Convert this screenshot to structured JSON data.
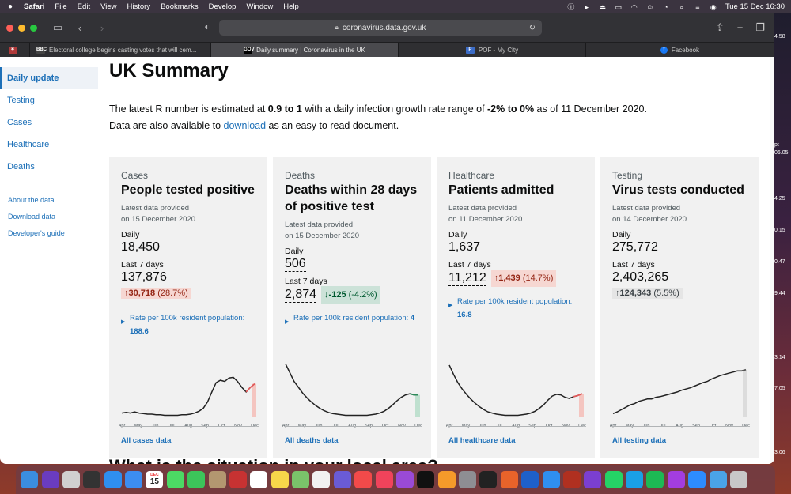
{
  "menubar": {
    "apple": "",
    "items": [
      "Safari",
      "File",
      "Edit",
      "View",
      "History",
      "Bookmarks",
      "Develop",
      "Window",
      "Help"
    ],
    "datetime": "Tue 15 Dec  16:30"
  },
  "browser": {
    "url": "coronavirus.data.gov.uk",
    "tabs": [
      {
        "label": "Electoral college begins casting votes that will cem...",
        "favicon": "BBC",
        "color": "#444"
      },
      {
        "label": "Daily summary | Coronavirus in the UK",
        "favicon": "GOV",
        "color": "#000"
      },
      {
        "label": "POF - My City",
        "favicon": "P",
        "color": "#3b6cc7"
      },
      {
        "label": "Facebook",
        "favicon": "f",
        "color": "#1877f2"
      }
    ]
  },
  "sidebar": {
    "items": [
      {
        "label": "Daily update"
      },
      {
        "label": "Testing"
      },
      {
        "label": "Cases"
      },
      {
        "label": "Healthcare"
      },
      {
        "label": "Deaths"
      }
    ],
    "links": [
      {
        "label": "About the data"
      },
      {
        "label": "Download data"
      },
      {
        "label": "Developer's guide"
      }
    ]
  },
  "main": {
    "title": "UK Summary",
    "summary_pre": "The latest R number is estimated at ",
    "r_number": "0.9 to 1",
    "summary_mid": " with a daily infection growth rate range of ",
    "growth_rate": "-2% to 0%",
    "summary_post": " as of 11 December 2020.",
    "download_pre": "Data are also available to ",
    "download_link": "download",
    "download_post": " as an easy to read document.",
    "next_heading": "What is the situation in your local area?"
  },
  "cards": [
    {
      "category": "Cases",
      "heading": "People tested positive",
      "provided_line1": "Latest data provided",
      "provided_line2": "on 15 December 2020",
      "daily_label": "Daily",
      "daily_value": "18,450",
      "week_label": "Last 7 days",
      "week_value": "137,876",
      "change_arrow": "↑",
      "change_value": "30,718",
      "change_pct": "(28.7%)",
      "change_type": "up",
      "rate_label": "Rate per 100k resident population: ",
      "rate_value": "188.6",
      "all_link": "All cases data",
      "line_color": "#222",
      "tail_color": "#e05a5a",
      "bar_color": "#f4c5c0",
      "series": [
        0.06,
        0.07,
        0.06,
        0.08,
        0.06,
        0.05,
        0.04,
        0.04,
        0.03,
        0.03,
        0.02,
        0.02,
        0.02,
        0.02,
        0.03,
        0.03,
        0.04,
        0.06,
        0.09,
        0.14,
        0.25,
        0.42,
        0.58,
        0.62,
        0.6,
        0.66,
        0.67,
        0.6,
        0.5,
        0.42,
        0.5,
        0.56
      ]
    },
    {
      "category": "Deaths",
      "heading": "Deaths within 28 days of positive test",
      "provided_line1": "Latest data provided",
      "provided_line2": "on 15 December 2020",
      "daily_label": "Daily",
      "daily_value": "506",
      "week_label": "Last 7 days",
      "week_value": "2,874",
      "change_arrow": "↓",
      "change_value": "-125",
      "change_pct": "(-4.2%)",
      "change_type": "down",
      "rate_label": "Rate per 100k resident population: ",
      "rate_value": "4",
      "all_link": "All deaths data",
      "line_color": "#222",
      "tail_color": "#2e8a5a",
      "bar_color": "#bfe0cf",
      "series": [
        0.9,
        0.75,
        0.6,
        0.5,
        0.4,
        0.32,
        0.25,
        0.19,
        0.14,
        0.1,
        0.07,
        0.05,
        0.04,
        0.03,
        0.02,
        0.02,
        0.02,
        0.02,
        0.02,
        0.02,
        0.03,
        0.04,
        0.06,
        0.09,
        0.14,
        0.2,
        0.27,
        0.33,
        0.37,
        0.39,
        0.37,
        0.37
      ]
    },
    {
      "category": "Healthcare",
      "heading": "Patients admitted",
      "provided_line1": "Latest data provided",
      "provided_line2": "on 11 December 2020",
      "daily_label": "Daily",
      "daily_value": "1,637",
      "week_label": "Last 7 days",
      "week_value": "11,212",
      "change_arrow": "↑",
      "change_value": "1,439",
      "change_pct": "(14.7%)",
      "change_type": "up",
      "rate_label": "Rate per 100k resident population: ",
      "rate_value": "16.8",
      "all_link": "All healthcare data",
      "line_color": "#222",
      "tail_color": "#e05a5a",
      "bar_color": "#f4c5c0",
      "series": [
        0.88,
        0.72,
        0.58,
        0.47,
        0.38,
        0.3,
        0.23,
        0.17,
        0.12,
        0.08,
        0.06,
        0.04,
        0.03,
        0.02,
        0.02,
        0.02,
        0.02,
        0.03,
        0.04,
        0.06,
        0.09,
        0.14,
        0.2,
        0.28,
        0.35,
        0.38,
        0.37,
        0.33,
        0.31,
        0.34,
        0.36,
        0.39
      ]
    },
    {
      "category": "Testing",
      "heading": "Virus tests conducted",
      "provided_line1": "Latest data provided",
      "provided_line2": "on 14 December 2020",
      "daily_label": "Daily",
      "daily_value": "275,772",
      "week_label": "Last 7 days",
      "week_value": "2,403,265",
      "change_arrow": "↑",
      "change_value": "124,343",
      "change_pct": "(5.5%)",
      "change_type": "neutral",
      "rate_label": "",
      "rate_value": "",
      "all_link": "All testing data",
      "line_color": "#222",
      "tail_color": "#555",
      "bar_color": "#dcdcdc",
      "series": [
        0.05,
        0.08,
        0.12,
        0.16,
        0.2,
        0.22,
        0.26,
        0.28,
        0.3,
        0.3,
        0.33,
        0.34,
        0.36,
        0.38,
        0.4,
        0.42,
        0.45,
        0.47,
        0.49,
        0.52,
        0.55,
        0.58,
        0.6,
        0.64,
        0.67,
        0.7,
        0.72,
        0.74,
        0.76,
        0.78,
        0.78,
        0.8
      ]
    }
  ],
  "chart_months": [
    "Apr",
    "May",
    "Jun",
    "Jul",
    "Aug",
    "Sep",
    "Oct",
    "Nov",
    "Dec"
  ],
  "desktop_edge": [
    "4.58",
    "pt",
    "06.05",
    "4.25",
    "0.15",
    "0.47",
    "9.44",
    "3.14",
    "7.05",
    "3.06"
  ],
  "dock": {
    "calendar_month": "DEC",
    "calendar_day": "15",
    "icons": [
      {
        "name": "finder",
        "color": "#3b8de0"
      },
      {
        "name": "siri",
        "color": "#6a3cc0"
      },
      {
        "name": "launchpad",
        "color": "#d0d0d0"
      },
      {
        "name": "mission-control",
        "color": "#333"
      },
      {
        "name": "app-store",
        "color": "#2f8ff0"
      },
      {
        "name": "mail",
        "color": "#3c8df0"
      },
      {
        "name": "calendar",
        "color": "#fff"
      },
      {
        "name": "messages",
        "color": "#4cd964"
      },
      {
        "name": "facetime",
        "color": "#3cc45a"
      },
      {
        "name": "contacts",
        "color": "#b39770"
      },
      {
        "name": "photo-booth",
        "color": "#c73232"
      },
      {
        "name": "reminders",
        "color": "#fff"
      },
      {
        "name": "notes",
        "color": "#f7d64a"
      },
      {
        "name": "maps",
        "color": "#7ac36a"
      },
      {
        "name": "photos",
        "color": "#f2f2f2"
      },
      {
        "name": "star-app",
        "color": "#6a5bd6"
      },
      {
        "name": "news",
        "color": "#f24a4a"
      },
      {
        "name": "music",
        "color": "#f0435b"
      },
      {
        "name": "podcasts",
        "color": "#9a4ad6"
      },
      {
        "name": "tv",
        "color": "#111"
      },
      {
        "name": "books",
        "color": "#f59a2a"
      },
      {
        "name": "system-preferences",
        "color": "#8e8e93"
      },
      {
        "name": "activity-monitor",
        "color": "#222"
      },
      {
        "name": "firefox",
        "color": "#e8632a"
      },
      {
        "name": "1password",
        "color": "#1e60c9"
      },
      {
        "name": "safari",
        "color": "#2f8ff0"
      },
      {
        "name": "game-app",
        "color": "#b03020"
      },
      {
        "name": "idea-app",
        "color": "#7b3fd0"
      },
      {
        "name": "whatsapp",
        "color": "#25d366"
      },
      {
        "name": "skype",
        "color": "#1aa0e6"
      },
      {
        "name": "spotify",
        "color": "#1db954"
      },
      {
        "name": "messenger",
        "color": "#a33de0"
      },
      {
        "name": "zoom",
        "color": "#2d8cff"
      },
      {
        "name": "downloads-folder",
        "color": "#4aa3e8"
      },
      {
        "name": "trash",
        "color": "#c8c8c8"
      }
    ]
  }
}
